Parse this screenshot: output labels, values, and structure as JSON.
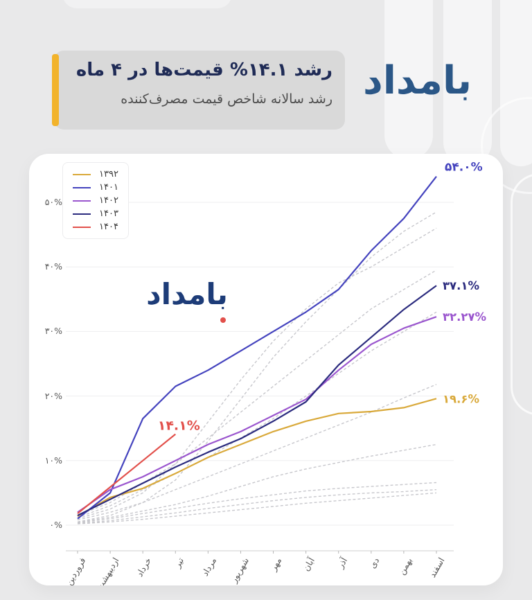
{
  "header": {
    "title": "رشد ۱۴.۱% قیمت‌ها در ۴ ماه",
    "subtitle": "رشد سالانه شاخص قیمت مصرف‌کننده",
    "logo_text": "بامداد",
    "accent_color": "#F2B32B"
  },
  "watermark": {
    "logo_text": "بامداد",
    "dot_color": "#E2504B"
  },
  "chart_data": {
    "type": "line",
    "title": "",
    "xlabel": "",
    "ylabel": "",
    "x_categories": [
      "فروردین",
      "اردیبهشت",
      "خرداد",
      "تیر",
      "مرداد",
      "شهریور",
      "مهر",
      "آبان",
      "آذر",
      "دی",
      "بهمن",
      "اسفند"
    ],
    "y_ticks": [
      {
        "label": "۰%",
        "value": 0
      },
      {
        "label": "۱۰%",
        "value": 10
      },
      {
        "label": "۲۰%",
        "value": 20
      },
      {
        "label": "۳۰%",
        "value": 30
      },
      {
        "label": "۴۰%",
        "value": 40
      },
      {
        "label": "۵۰%",
        "value": 50
      }
    ],
    "ylim": [
      -3,
      57
    ],
    "grid": true,
    "grid_color": "#EDEDEF",
    "axis_color": "#CFCFCF",
    "tick_color": "#B7B7B7",
    "axis_label_color": "#5A5A5A",
    "context_color": "#C7C7CC",
    "legend_position": "top-left",
    "series": [
      {
        "name": "۱۳۹۲",
        "color": "#D9A93A",
        "style": "solid",
        "end_label": "۱۹.۶%",
        "values": [
          1.4,
          4.3,
          5.7,
          8.0,
          10.5,
          12.5,
          14.5,
          16.1,
          17.3,
          17.6,
          18.2,
          19.6
        ]
      },
      {
        "name": "۱۴۰۱",
        "color": "#4443BE",
        "style": "solid",
        "end_label": "۵۴.۰%",
        "values": [
          1.0,
          5.0,
          16.5,
          21.5,
          24.0,
          27.0,
          30.0,
          33.0,
          36.5,
          42.5,
          47.5,
          54.0
        ]
      },
      {
        "name": "۱۴۰۲",
        "color": "#9A55CE",
        "style": "solid",
        "end_label": "۳۲.۲۷%",
        "values": [
          2.0,
          5.5,
          7.5,
          10.0,
          12.5,
          14.5,
          17.0,
          19.5,
          24.0,
          28.0,
          30.5,
          32.27
        ]
      },
      {
        "name": "۱۴۰۳",
        "color": "#2B2B7E",
        "style": "solid",
        "end_label": "۳۷.۱%",
        "values": [
          1.5,
          4.0,
          6.5,
          9.0,
          11.3,
          13.4,
          16.1,
          19.1,
          24.8,
          29.1,
          33.4,
          37.1
        ]
      },
      {
        "name": "۱۴۰۴",
        "color": "#E2504B",
        "style": "solid",
        "end_label": "۱۴.۱%",
        "values": [
          1.8,
          5.9,
          10.0,
          14.1
        ]
      }
    ],
    "context_series": [
      {
        "style": "dashed",
        "values": [
          0.5,
          1.5,
          3.5,
          7,
          13,
          19.5,
          26,
          31.5,
          36.5,
          41.5,
          45.5,
          48.5
        ]
      },
      {
        "style": "dashed",
        "values": [
          1,
          2.5,
          5,
          9.5,
          16,
          22.5,
          28.5,
          33.5,
          37.5,
          40,
          43,
          46
        ]
      },
      {
        "style": "dashed",
        "values": [
          1.5,
          3.5,
          6.5,
          9.5,
          13.5,
          17.5,
          21.5,
          25.5,
          29.5,
          33.5,
          36.5,
          39.5
        ]
      },
      {
        "style": "dashed",
        "values": [
          1.2,
          3,
          5.5,
          8,
          10.5,
          13.5,
          16.5,
          20,
          23.5,
          27,
          30,
          33
        ]
      },
      {
        "style": "dashed",
        "values": [
          0.8,
          2,
          3.5,
          5.5,
          7.5,
          9.5,
          11.5,
          13.5,
          15.5,
          17.5,
          19.7,
          21.8
        ]
      },
      {
        "style": "dashed",
        "values": [
          0.5,
          1.2,
          2.2,
          3.2,
          4.5,
          6,
          7.5,
          8.7,
          9.7,
          10.7,
          11.6,
          12.5
        ]
      },
      {
        "style": "dashed",
        "values": [
          0.4,
          1,
          1.8,
          2.6,
          3.4,
          4.1,
          4.7,
          5.3,
          5.7,
          6,
          6.3,
          6.6
        ]
      },
      {
        "style": "dashed",
        "values": [
          0.3,
          0.7,
          1.3,
          1.9,
          2.6,
          3.2,
          3.8,
          4.3,
          4.7,
          5,
          5.2,
          5.5
        ]
      },
      {
        "style": "dashed",
        "values": [
          0.2,
          0.5,
          0.9,
          1.4,
          1.9,
          2.4,
          2.9,
          3.4,
          3.8,
          4.2,
          4.6,
          5
        ]
      }
    ]
  }
}
